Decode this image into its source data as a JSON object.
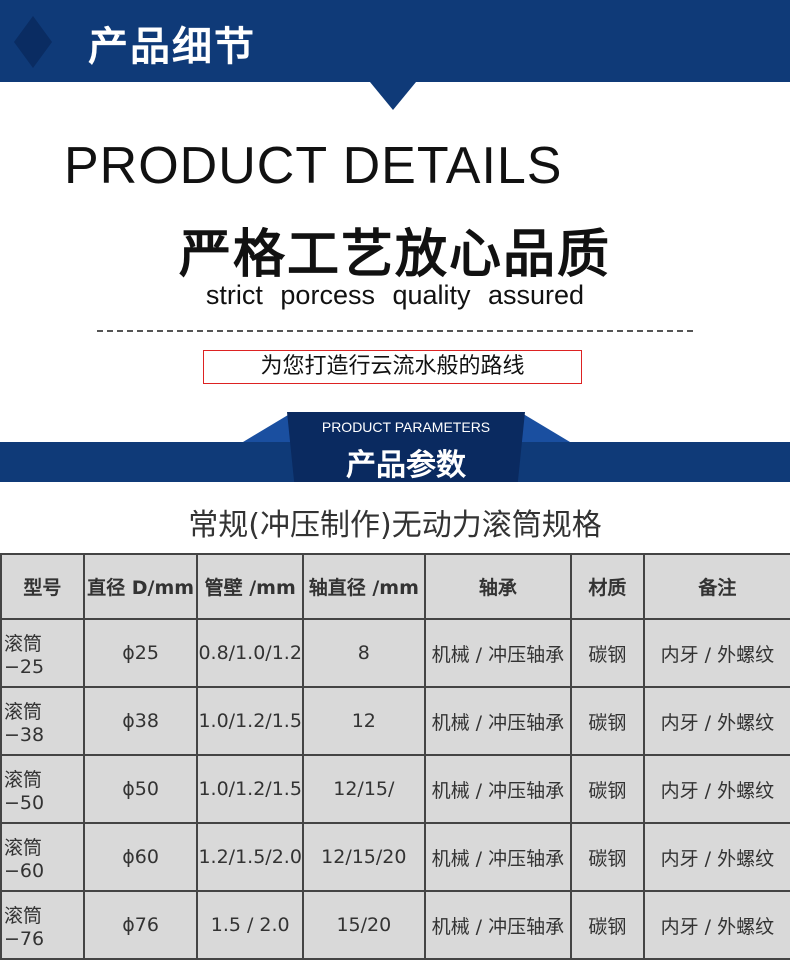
{
  "header": {
    "title": "产品细节",
    "accent": "#0f3a78"
  },
  "details": {
    "en_title": "PRODUCT DETAILS",
    "cn_slogan": "严格工艺放心品质",
    "en_slogan": "strict porcess quality assured",
    "tagline": "为您打造行云流水般的路线"
  },
  "params": {
    "en": "PRODUCT PARAMETERS",
    "cn": "产品参数",
    "subtitle": "常规(冲压制作)无动力滚筒规格"
  },
  "table": {
    "headers": [
      "型号",
      "直径 D/mm",
      "管壁 /mm",
      "轴直径 /mm",
      "轴承",
      "材质",
      "备注"
    ],
    "rows": [
      [
        "滚筒 −25",
        "ɸ25",
        "0.8/1.0/1.2",
        "8",
        "机械 / 冲压轴承",
        "碳钢",
        "内牙 / 外螺纹"
      ],
      [
        "滚筒 −38",
        "ɸ38",
        "1.0/1.2/1.5",
        "12",
        "机械 / 冲压轴承",
        "碳钢",
        "内牙 / 外螺纹"
      ],
      [
        "滚筒 −50",
        "ɸ50",
        "1.0/1.2/1.5",
        "12/15/",
        "机械 / 冲压轴承",
        "碳钢",
        "内牙 / 外螺纹"
      ],
      [
        "滚筒 −60",
        "ɸ60",
        "1.2/1.5/2.0",
        "12/15/20",
        "机械 / 冲压轴承",
        "碳钢",
        "内牙 / 外螺纹"
      ],
      [
        "滚筒 −76",
        "ɸ76",
        "1.5 / 2.0",
        "15/20",
        "机械 / 冲压轴承",
        "碳钢",
        "内牙 / 外螺纹"
      ]
    ]
  }
}
